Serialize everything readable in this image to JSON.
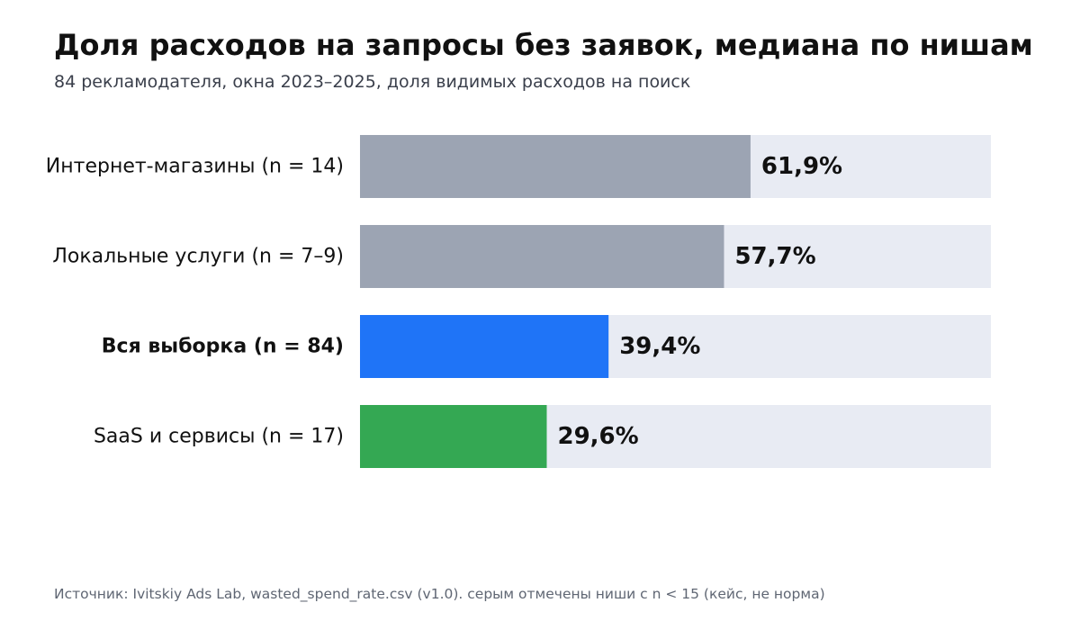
{
  "header": {
    "title": "Доля расходов на запросы без заявок, медиана по нишам",
    "subtitle": "84 рекламодателя, окна 2023–2025, доля видимых расходов на поиск"
  },
  "footer": {
    "source": "Источник: Ivitskiy Ads Lab, wasted_spend_rate.csv (v1.0). серым отмечены ниши с n < 15 (кейс, не норма)"
  },
  "colors": {
    "track": "#e8ebf3",
    "small_sample": "#9ca4b3",
    "overall": "#1f74f7",
    "saas": "#34a853"
  },
  "chart_data": {
    "type": "bar",
    "orientation": "horizontal",
    "title": "Доля расходов на запросы без заявок, медиана по нишам",
    "subtitle": "84 рекламодателя, окна 2023–2025, доля видимых расходов на поиск",
    "categories": [
      "Интернет-магазины (n = 14)",
      "Локальные услуги (n = 7–9)",
      "Вся выборка (n = 84)",
      "SaaS и сервисы (n = 17)"
    ],
    "values": [
      61.9,
      57.7,
      39.4,
      29.6
    ],
    "value_labels": [
      "61,9%",
      "57,7%",
      "39,4%",
      "29,6%"
    ],
    "bar_colors": [
      "#9ca4b3",
      "#9ca4b3",
      "#1f74f7",
      "#34a853"
    ],
    "emphasized": [
      false,
      false,
      true,
      false
    ],
    "xlim": [
      0,
      100
    ],
    "grid": false,
    "legend": "none"
  }
}
